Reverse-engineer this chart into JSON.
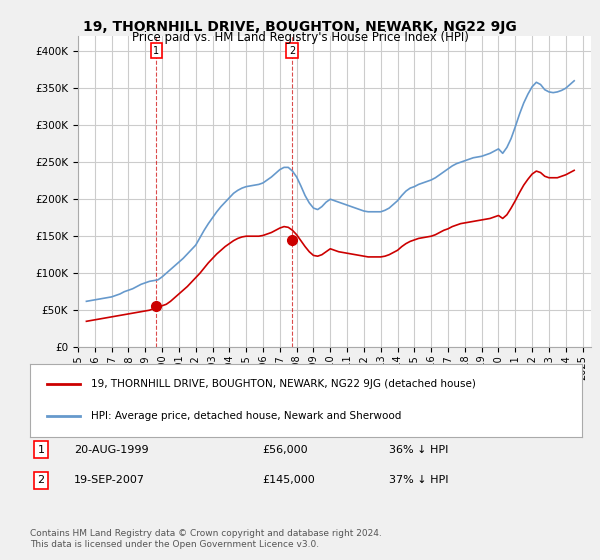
{
  "title": "19, THORNHILL DRIVE, BOUGHTON, NEWARK, NG22 9JG",
  "subtitle": "Price paid vs. HM Land Registry's House Price Index (HPI)",
  "ylabel": "",
  "xlim_start": 1995.0,
  "xlim_end": 2025.5,
  "ylim": [
    0,
    420000
  ],
  "yticks": [
    0,
    50000,
    100000,
    150000,
    200000,
    250000,
    300000,
    350000,
    400000
  ],
  "sale1_x": 1999.64,
  "sale1_y": 56000,
  "sale1_label": "1",
  "sale2_x": 2007.72,
  "sale2_y": 145000,
  "sale2_label": "2",
  "legend_entries": [
    "19, THORNHILL DRIVE, BOUGHTON, NEWARK, NG22 9JG (detached house)",
    "HPI: Average price, detached house, Newark and Sherwood"
  ],
  "annotation1": "1   20-AUG-1999        £56,000        36% ↓ HPI",
  "annotation2": "2   19-SEP-2007        £145,000      37% ↓ HPI",
  "footnote": "Contains HM Land Registry data © Crown copyright and database right 2024.\nThis data is licensed under the Open Government Licence v3.0.",
  "price_color": "#cc0000",
  "hpi_color": "#6699cc",
  "bg_color": "#f0f0f0",
  "plot_bg_color": "#ffffff",
  "grid_color": "#cccccc",
  "hpi_data_x": [
    1995.5,
    1995.75,
    1996.0,
    1996.25,
    1996.5,
    1996.75,
    1997.0,
    1997.25,
    1997.5,
    1997.75,
    1998.0,
    1998.25,
    1998.5,
    1998.75,
    1999.0,
    1999.25,
    1999.5,
    1999.75,
    2000.0,
    2000.25,
    2000.5,
    2000.75,
    2001.0,
    2001.25,
    2001.5,
    2001.75,
    2002.0,
    2002.25,
    2002.5,
    2002.75,
    2003.0,
    2003.25,
    2003.5,
    2003.75,
    2004.0,
    2004.25,
    2004.5,
    2004.75,
    2005.0,
    2005.25,
    2005.5,
    2005.75,
    2006.0,
    2006.25,
    2006.5,
    2006.75,
    2007.0,
    2007.25,
    2007.5,
    2007.75,
    2008.0,
    2008.25,
    2008.5,
    2008.75,
    2009.0,
    2009.25,
    2009.5,
    2009.75,
    2010.0,
    2010.25,
    2010.5,
    2010.75,
    2011.0,
    2011.25,
    2011.5,
    2011.75,
    2012.0,
    2012.25,
    2012.5,
    2012.75,
    2013.0,
    2013.25,
    2013.5,
    2013.75,
    2014.0,
    2014.25,
    2014.5,
    2014.75,
    2015.0,
    2015.25,
    2015.5,
    2015.75,
    2016.0,
    2016.25,
    2016.5,
    2016.75,
    2017.0,
    2017.25,
    2017.5,
    2017.75,
    2018.0,
    2018.25,
    2018.5,
    2018.75,
    2019.0,
    2019.25,
    2019.5,
    2019.75,
    2020.0,
    2020.25,
    2020.5,
    2020.75,
    2021.0,
    2021.25,
    2021.5,
    2021.75,
    2022.0,
    2022.25,
    2022.5,
    2022.75,
    2023.0,
    2023.25,
    2023.5,
    2023.75,
    2024.0,
    2024.25,
    2024.5
  ],
  "hpi_data_y": [
    62000,
    63000,
    64000,
    65000,
    66000,
    67000,
    68000,
    70000,
    72000,
    75000,
    77000,
    79000,
    82000,
    85000,
    87000,
    89000,
    90000,
    91000,
    95000,
    100000,
    105000,
    110000,
    115000,
    120000,
    126000,
    132000,
    138000,
    148000,
    158000,
    167000,
    175000,
    183000,
    190000,
    196000,
    202000,
    208000,
    212000,
    215000,
    217000,
    218000,
    219000,
    220000,
    222000,
    226000,
    230000,
    235000,
    240000,
    243000,
    243000,
    238000,
    230000,
    218000,
    205000,
    195000,
    188000,
    186000,
    190000,
    196000,
    200000,
    198000,
    196000,
    194000,
    192000,
    190000,
    188000,
    186000,
    184000,
    183000,
    183000,
    183000,
    183000,
    185000,
    188000,
    193000,
    198000,
    205000,
    211000,
    215000,
    217000,
    220000,
    222000,
    224000,
    226000,
    229000,
    233000,
    237000,
    241000,
    245000,
    248000,
    250000,
    252000,
    254000,
    256000,
    257000,
    258000,
    260000,
    262000,
    265000,
    268000,
    262000,
    270000,
    282000,
    298000,
    315000,
    330000,
    342000,
    352000,
    358000,
    355000,
    348000,
    345000,
    344000,
    345000,
    347000,
    350000,
    355000,
    360000
  ],
  "price_data_x": [
    1995.5,
    1995.75,
    1996.0,
    1996.25,
    1996.5,
    1996.75,
    1997.0,
    1997.25,
    1997.5,
    1997.75,
    1998.0,
    1998.25,
    1998.5,
    1998.75,
    1999.0,
    1999.25,
    1999.5,
    1999.75,
    2000.0,
    2000.25,
    2000.5,
    2000.75,
    2001.0,
    2001.25,
    2001.5,
    2001.75,
    2002.0,
    2002.25,
    2002.5,
    2002.75,
    2003.0,
    2003.25,
    2003.5,
    2003.75,
    2004.0,
    2004.25,
    2004.5,
    2004.75,
    2005.0,
    2005.25,
    2005.5,
    2005.75,
    2006.0,
    2006.25,
    2006.5,
    2006.75,
    2007.0,
    2007.25,
    2007.5,
    2007.75,
    2008.0,
    2008.25,
    2008.5,
    2008.75,
    2009.0,
    2009.25,
    2009.5,
    2009.75,
    2010.0,
    2010.25,
    2010.5,
    2010.75,
    2011.0,
    2011.25,
    2011.5,
    2011.75,
    2012.0,
    2012.25,
    2012.5,
    2012.75,
    2013.0,
    2013.25,
    2013.5,
    2013.75,
    2014.0,
    2014.25,
    2014.5,
    2014.75,
    2015.0,
    2015.25,
    2015.5,
    2015.75,
    2016.0,
    2016.25,
    2016.5,
    2016.75,
    2017.0,
    2017.25,
    2017.5,
    2017.75,
    2018.0,
    2018.25,
    2018.5,
    2018.75,
    2019.0,
    2019.25,
    2019.5,
    2019.75,
    2020.0,
    2020.25,
    2020.5,
    2020.75,
    2021.0,
    2021.25,
    2021.5,
    2021.75,
    2022.0,
    2022.25,
    2022.5,
    2022.75,
    2023.0,
    2023.25,
    2023.5,
    2023.75,
    2024.0,
    2024.25,
    2024.5
  ],
  "price_data_y": [
    35000,
    36000,
    37000,
    38000,
    39000,
    40000,
    41000,
    42000,
    43000,
    44000,
    45000,
    46000,
    47000,
    48000,
    49000,
    50000,
    52000,
    54000,
    56000,
    58000,
    62000,
    67000,
    72000,
    77000,
    82000,
    88000,
    94000,
    100000,
    107000,
    114000,
    120000,
    126000,
    131000,
    136000,
    140000,
    144000,
    147000,
    149000,
    150000,
    150000,
    150000,
    150000,
    151000,
    153000,
    155000,
    158000,
    161000,
    163000,
    162000,
    158000,
    152000,
    144000,
    136000,
    129000,
    124000,
    123000,
    125000,
    129000,
    133000,
    131000,
    129000,
    128000,
    127000,
    126000,
    125000,
    124000,
    123000,
    122000,
    122000,
    122000,
    122000,
    123000,
    125000,
    128000,
    131000,
    136000,
    140000,
    143000,
    145000,
    147000,
    148000,
    149000,
    150000,
    152000,
    155000,
    158000,
    160000,
    163000,
    165000,
    167000,
    168000,
    169000,
    170000,
    171000,
    172000,
    173000,
    174000,
    176000,
    178000,
    174000,
    179000,
    188000,
    198000,
    209000,
    219000,
    227000,
    234000,
    238000,
    236000,
    231000,
    229000,
    229000,
    229000,
    231000,
    233000,
    236000,
    239000
  ],
  "xticks": [
    1995,
    1996,
    1997,
    1998,
    1999,
    2000,
    2001,
    2002,
    2003,
    2004,
    2005,
    2006,
    2007,
    2008,
    2009,
    2010,
    2011,
    2012,
    2013,
    2014,
    2015,
    2016,
    2017,
    2018,
    2019,
    2020,
    2021,
    2022,
    2023,
    2024,
    2025
  ]
}
